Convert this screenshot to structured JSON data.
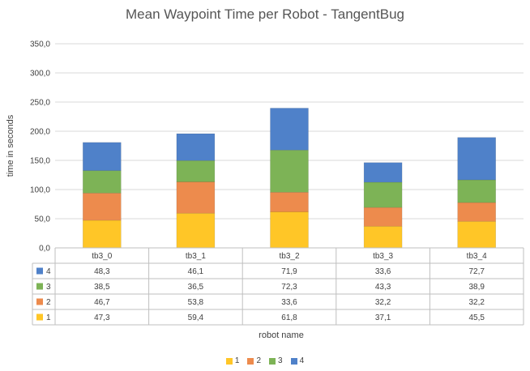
{
  "chart_data": {
    "type": "bar",
    "stacked": true,
    "title": "Mean Waypoint Time per Robot - TangentBug",
    "xlabel": "robot name",
    "ylabel": "time in seconds",
    "ylim": [
      0,
      350
    ],
    "yticks": [
      "0,0",
      "50,0",
      "100,0",
      "150,0",
      "200,0",
      "250,0",
      "300,0",
      "350,0"
    ],
    "categories": [
      "tb3_0",
      "tb3_1",
      "tb3_2",
      "tb3_3",
      "tb3_4"
    ],
    "grid": true,
    "legend_position": "bottom",
    "series": [
      {
        "name": "1",
        "color": "#FFC627",
        "values": [
          47.3,
          59.4,
          61.8,
          37.1,
          45.5
        ],
        "labels": [
          "47,3",
          "59,4",
          "61,8",
          "37,1",
          "45,5"
        ]
      },
      {
        "name": "2",
        "color": "#ED8B4D",
        "values": [
          46.7,
          53.8,
          33.6,
          32.2,
          32.2
        ],
        "labels": [
          "46,7",
          "53,8",
          "33,6",
          "32,2",
          "32,2"
        ]
      },
      {
        "name": "3",
        "color": "#7DB356",
        "values": [
          38.5,
          36.5,
          72.3,
          43.3,
          38.9
        ],
        "labels": [
          "38,5",
          "36,5",
          "72,3",
          "43,3",
          "38,9"
        ]
      },
      {
        "name": "4",
        "color": "#4F81C9",
        "values": [
          48.3,
          46.1,
          71.9,
          33.6,
          72.7
        ],
        "labels": [
          "48,3",
          "46,1",
          "71,9",
          "33,6",
          "72,7"
        ]
      }
    ]
  }
}
